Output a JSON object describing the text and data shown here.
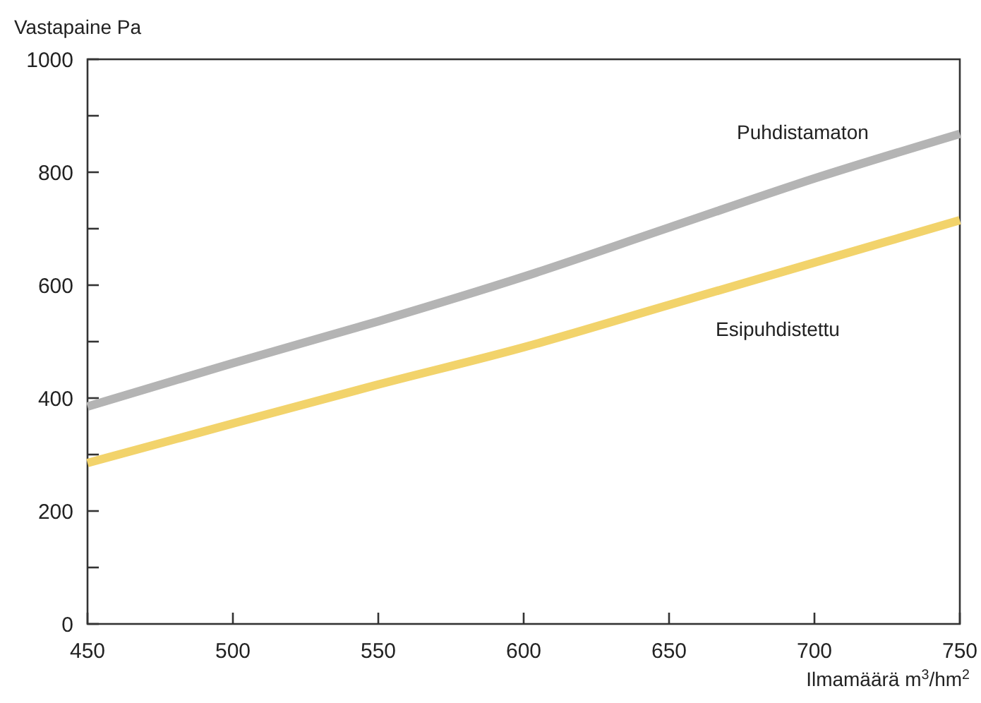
{
  "chart_data": {
    "type": "line",
    "ylabel": "Vastapaine Pa",
    "xlabel": "Ilmamäärä m$^{3}$/hm$^{2}$",
    "x": [
      450,
      500,
      550,
      600,
      650,
      700,
      750
    ],
    "series": [
      {
        "name": "Puhdistamaton",
        "color": "#b4b4b4",
        "values": [
          385,
          462,
          536,
          615,
          702,
          789,
          868
        ]
      },
      {
        "name": "Esipuhdistettu",
        "color": "#f2d36b",
        "values": [
          285,
          355,
          424,
          490,
          565,
          640,
          715
        ]
      }
    ],
    "xlim": [
      450,
      750
    ],
    "xticks": [
      450,
      500,
      550,
      600,
      650,
      700,
      750
    ],
    "ylim": [
      0,
      1000
    ],
    "yticks": [
      0,
      {
        "value": 100,
        "label": null
      },
      200,
      {
        "value": 300,
        "label": null
      },
      400,
      {
        "value": 500,
        "label": null
      },
      600,
      {
        "value": 700,
        "label": null
      },
      800,
      {
        "value": 900,
        "label": null
      },
      1000
    ],
    "grid": false,
    "marker": "none",
    "line_style": "solid"
  }
}
